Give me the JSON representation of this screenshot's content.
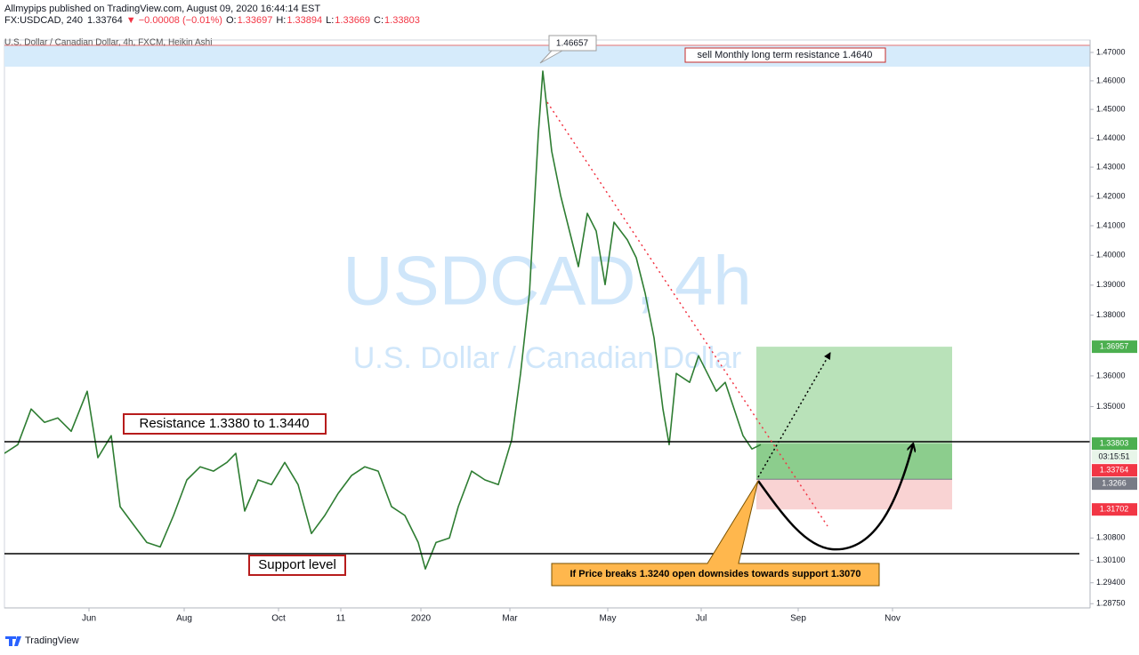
{
  "header": {
    "published": "Allmypips published on TradingView.com, August 09, 2020 16:44:14 EST",
    "symbol": "FX:USDCAD, 240",
    "last": "1.33764",
    "change": "▼ −0.00008 (−0.01%)",
    "ohlc": [
      {
        "key": "O:",
        "value": "1.33697"
      },
      {
        "key": "H:",
        "value": "1.33894"
      },
      {
        "key": "L:",
        "value": "1.33669"
      },
      {
        "key": "C:",
        "value": "1.33803"
      }
    ]
  },
  "chart_data": {
    "type": "line",
    "legend": "U.S. Dollar / Canadian Dollar, 4h, FXCM, Heikin Ashi",
    "watermark": "USDCAD, 4h",
    "watermark_subtitle": "U.S. Dollar / Canadian Dollar",
    "color": "#2e7d32",
    "log_scale": true,
    "grid": false,
    "x": [
      0,
      1.5,
      3,
      4.5,
      6,
      7.5,
      9.3,
      10.5,
      12,
      13,
      14.5,
      16,
      17.5,
      19,
      20.5,
      22,
      23.5,
      25,
      26,
      27,
      28.5,
      30,
      31.5,
      33,
      34.5,
      36,
      37.5,
      39,
      40.5,
      42,
      43.5,
      45,
      46.5,
      47.3,
      48.5,
      50,
      51,
      52.5,
      54,
      55.5,
      57,
      58,
      59,
      60,
      60.5,
      61.5,
      62.5,
      63.5,
      64.5,
      65.5,
      66.5,
      67.5,
      68.5,
      70,
      71,
      72,
      73,
      74,
      74.7,
      75.5,
      77,
      78,
      79,
      80,
      81,
      82,
      83,
      84,
      85
    ],
    "values": [
      1.3349,
      1.3377,
      1.3492,
      1.3449,
      1.3463,
      1.342,
      1.355,
      1.3335,
      1.3406,
      1.3179,
      1.3122,
      1.3066,
      1.3052,
      1.3151,
      1.3264,
      1.3306,
      1.3292,
      1.332,
      1.3349,
      1.3165,
      1.3264,
      1.3249,
      1.332,
      1.3249,
      1.3094,
      1.3151,
      1.3221,
      1.3278,
      1.3306,
      1.3292,
      1.3179,
      1.3151,
      1.3066,
      1.2983,
      1.3066,
      1.308,
      1.3179,
      1.3292,
      1.3264,
      1.3249,
      1.3392,
      1.3608,
      1.3873,
      1.4417,
      1.4634,
      1.4355,
      1.4203,
      1.4082,
      1.3962,
      1.4142,
      1.4082,
      1.3902,
      1.4112,
      1.4052,
      1.3992,
      1.3873,
      1.3725,
      1.3492,
      1.3377,
      1.3608,
      1.3579,
      1.3666,
      1.3608,
      1.355,
      1.3579,
      1.3492,
      1.3406,
      1.3363,
      1.3377
    ],
    "xlim": [
      0,
      122
    ],
    "xticks": [
      {
        "value": 9.5,
        "label": "Jun"
      },
      {
        "value": 20.2,
        "label": "Aug"
      },
      {
        "value": 30.8,
        "label": "Oct"
      },
      {
        "value": 37.8,
        "label": "11"
      },
      {
        "value": 46.8,
        "label": "2020"
      },
      {
        "value": 56.8,
        "label": "Mar"
      },
      {
        "value": 67.8,
        "label": "May"
      },
      {
        "value": 78.3,
        "label": "Jul"
      },
      {
        "value": 89.2,
        "label": "Sep"
      },
      {
        "value": 99.8,
        "label": "Nov"
      }
    ],
    "ylim": [
      1.2862,
      1.4744
    ],
    "yticks": [
      {
        "value": 1.47,
        "label": "1.47000"
      },
      {
        "value": 1.46,
        "label": "1.46000"
      },
      {
        "value": 1.45,
        "label": "1.45000"
      },
      {
        "value": 1.44,
        "label": "1.44000"
      },
      {
        "value": 1.43,
        "label": "1.43000"
      },
      {
        "value": 1.42,
        "label": "1.42000"
      },
      {
        "value": 1.41,
        "label": "1.41000"
      },
      {
        "value": 1.4,
        "label": "1.40000"
      },
      {
        "value": 1.39,
        "label": "1.39000"
      },
      {
        "value": 1.38,
        "label": "1.38000"
      },
      {
        "value": 1.36,
        "label": "1.36000"
      },
      {
        "value": 1.35,
        "label": "1.35000"
      },
      {
        "value": 1.308,
        "label": "1.30800"
      },
      {
        "value": 1.301,
        "label": "1.30100"
      },
      {
        "value": 1.294,
        "label": "1.29400"
      },
      {
        "value": 1.2875,
        "label": "1.28750"
      }
    ],
    "price_labels": [
      {
        "value": 1.36957,
        "color": "#4caf50"
      },
      {
        "value": 1.33803,
        "color": "#4caf50"
      },
      {
        "value": 1.33764,
        "color": "#f23645"
      },
      {
        "value": 1.3266,
        "color": "#787b86"
      },
      {
        "value": 1.31702,
        "color": "#f23645"
      }
    ],
    "countdown": "03:15:51",
    "annotations": {
      "peak": "1.46657",
      "sell_zone": "sell Monthly long term resistance 1.4640",
      "resistance": "Resistance 1.3380 to 1.3440",
      "support": "Support level",
      "breakdown": "If Price breaks 1.3240 open downsides towards support 1.3070"
    }
  },
  "footer": {
    "brand": "TradingView"
  }
}
